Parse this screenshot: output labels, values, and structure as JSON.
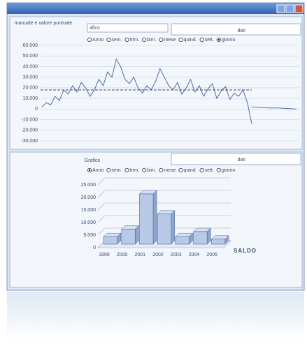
{
  "top_panel": {
    "label": "manuale e valore puntuale",
    "field": "afico",
    "tab": "dati",
    "periods": [
      "Anno",
      "sem.",
      "trim.",
      "bim.",
      "mese",
      "quind.",
      "sett.",
      "giorno"
    ],
    "selected": 7,
    "chart": {
      "type": "line",
      "values": [
        2000,
        6000,
        4000,
        12000,
        8000,
        18000,
        14000,
        22000,
        16000,
        25000,
        20000,
        12000,
        18000,
        28000,
        22000,
        35000,
        30000,
        47000,
        40000,
        28000,
        24000,
        30000,
        20000,
        15000,
        22000,
        18000,
        26000,
        38000,
        30000,
        22000,
        18000,
        25000,
        14000,
        20000,
        28000,
        16000,
        22000,
        12000,
        19000,
        24000,
        10000,
        17000,
        21000,
        9000,
        15000,
        12000,
        18000,
        6000,
        -14000
      ],
      "tail": [
        2000,
        1500,
        1000,
        1000,
        500,
        0
      ],
      "mean": 18000,
      "ylim": [
        -30000,
        60000
      ],
      "yticks": [
        {
          "value": 60000,
          "label": "60.000"
        },
        {
          "value": 50000,
          "label": "50.000"
        },
        {
          "value": 40000,
          "label": "40.000"
        },
        {
          "value": 30000,
          "label": "30.000"
        },
        {
          "value": 20000,
          "label": "20.000"
        },
        {
          "value": 10000,
          "label": "10.000"
        },
        0,
        {
          "value": -10000,
          "label": "-10.000"
        },
        {
          "value": -20000,
          "label": "-20.000"
        },
        {
          "value": -30000,
          "label": "-30.000"
        }
      ],
      "color": "#3d5f9e"
    }
  },
  "bottom_panel": {
    "label": "Grafico",
    "tab": "dati",
    "periods": [
      "Anno",
      "sem.",
      "trim.",
      "bim.",
      "mese",
      "quind.",
      "sett.",
      "giorno"
    ],
    "selected": 0,
    "chart": {
      "type": "bar",
      "categories": [
        "1999",
        "2000",
        "2001",
        "2002",
        "2003",
        "2004",
        "2005"
      ],
      "values": [
        3000,
        6000,
        20000,
        12000,
        3000,
        5000,
        2000
      ],
      "series_name": "SALDO",
      "ylim": [
        0,
        25000
      ],
      "yticks": [
        0,
        {
          "value": 5000,
          "label": "5.000"
        },
        {
          "value": 10000,
          "label": "10.000"
        },
        {
          "value": 15000,
          "label": "15.000"
        },
        {
          "value": 20000,
          "label": "20.000"
        },
        {
          "value": 25000,
          "label": "25.000"
        }
      ],
      "color": "#b9c9e8"
    }
  }
}
